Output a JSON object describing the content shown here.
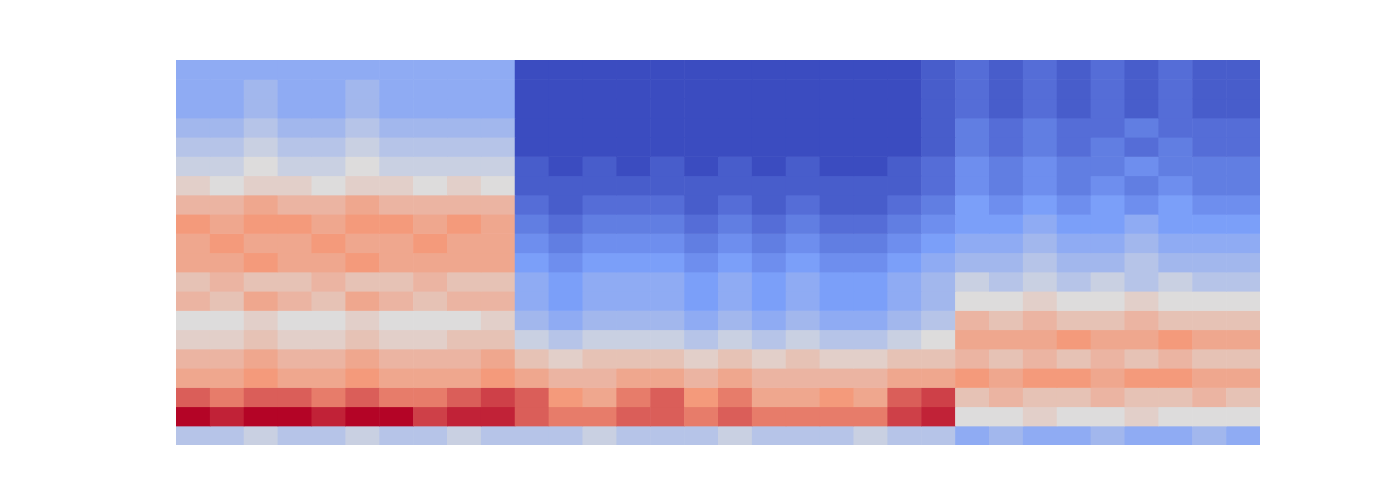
{
  "chart_data": {
    "type": "heatmap",
    "tick_labels": false,
    "x": [
      0.5,
      1.5,
      2.5,
      3.5,
      4.5,
      5.5,
      6.5,
      7.5,
      8.5,
      9.5,
      10.5,
      11.5,
      12.5,
      13.5,
      14.5,
      15.5,
      16.5,
      17.5,
      18.5,
      19.5,
      20.5,
      21.5,
      22.5,
      23.5,
      24.5,
      25.5,
      26.5,
      27.5,
      28.5,
      29.5,
      30.5,
      31.5
    ],
    "y": [
      0.5,
      1.5,
      2.5,
      3.5,
      4.5,
      5.5,
      6.5,
      7.5,
      8.5,
      9.5,
      10.5,
      11.5,
      12.5,
      13.5,
      14.5,
      15.5,
      16.5,
      17.5,
      18.5,
      19.5
    ],
    "xlim": [
      0,
      32
    ],
    "ylim": [
      0,
      20
    ],
    "zlim": [
      0,
      10
    ],
    "values": [
      [
        4,
        4,
        4.5,
        4,
        4,
        4.5,
        4,
        4,
        4.5,
        4,
        4,
        4,
        4.5,
        4,
        4,
        4,
        4.5,
        4,
        4,
        4,
        4.5,
        4,
        4,
        3,
        3.5,
        3,
        3,
        3.5,
        3,
        3,
        3.5,
        3
      ],
      [
        10,
        9.5,
        10,
        10,
        9.5,
        10,
        10,
        9,
        9.5,
        9.5,
        8.5,
        8,
        8,
        8.5,
        8.5,
        8,
        8.5,
        8,
        8,
        8,
        8,
        9,
        9.5,
        5,
        5,
        5.5,
        5,
        5,
        5.5,
        5,
        5,
        5
      ],
      [
        8.5,
        8,
        8.5,
        8.5,
        8,
        8.5,
        8,
        8,
        8.5,
        9,
        8.5,
        7.5,
        7,
        8,
        8.5,
        7.5,
        8,
        7,
        7,
        7.5,
        7,
        8.5,
        9,
        6,
        6.5,
        6,
        6,
        6.5,
        6,
        6,
        6.5,
        6
      ],
      [
        7,
        7,
        7.5,
        7,
        7,
        7.5,
        7,
        7,
        7,
        7.5,
        7,
        6.5,
        6.5,
        7,
        7,
        6.5,
        7,
        6.5,
        6.5,
        6.5,
        6.5,
        7,
        7,
        7.5,
        7,
        7.5,
        7.5,
        7,
        7.5,
        7.5,
        7,
        7
      ],
      [
        6.5,
        6.5,
        7,
        6.5,
        6.5,
        7,
        6.5,
        6.5,
        6.5,
        7,
        6,
        5.5,
        6,
        6,
        6,
        5.5,
        6,
        5.5,
        6,
        5.5,
        5.5,
        6,
        6,
        6.5,
        6,
        6.5,
        6,
        6.5,
        6,
        6.5,
        6,
        6
      ],
      [
        5.5,
        5.5,
        6,
        5.5,
        5.5,
        6,
        5.5,
        5.5,
        6,
        6,
        4.5,
        4,
        4.5,
        4.5,
        4.5,
        4,
        4.5,
        4,
        4.5,
        4,
        4,
        4.5,
        5,
        7,
        7,
        7,
        7.5,
        7,
        7,
        7.5,
        7,
        7
      ],
      [
        5,
        5,
        5.5,
        5,
        5,
        5.5,
        5,
        5,
        5,
        5.5,
        3.5,
        3,
        3.5,
        3.5,
        3.5,
        3,
        3.5,
        3,
        3.5,
        3,
        3,
        3.5,
        4,
        6.5,
        6,
        6.5,
        6,
        6,
        6.5,
        6,
        6,
        6
      ],
      [
        6.5,
        6,
        7,
        6.5,
        6,
        7,
        6.5,
        6,
        6.5,
        6.5,
        3,
        2.5,
        3,
        3,
        3,
        2.5,
        3,
        2.5,
        3,
        2.5,
        2.5,
        3,
        3.5,
        5,
        5,
        5.5,
        5,
        5,
        5.5,
        5,
        5,
        5
      ],
      [
        6,
        6.5,
        6,
        6,
        6.5,
        6,
        6,
        6.5,
        6,
        6,
        3,
        2.5,
        3,
        3,
        3,
        2.5,
        3,
        2.5,
        3,
        2.5,
        2.5,
        3,
        3.5,
        4.5,
        4,
        4.5,
        4,
        4.5,
        4,
        4.5,
        4,
        4
      ],
      [
        7,
        7,
        7.5,
        7,
        7,
        7.5,
        7,
        7,
        7,
        7,
        2.5,
        2,
        2.5,
        2.5,
        2.5,
        2,
        2.5,
        2,
        2.5,
        2,
        2,
        2.5,
        3,
        3.5,
        3.5,
        4,
        3.5,
        3.5,
        4,
        3.5,
        3.5,
        3.5
      ],
      [
        7,
        7.5,
        7,
        7,
        7.5,
        7,
        7,
        7.5,
        7,
        7,
        2,
        1.5,
        2,
        2,
        2,
        1.5,
        2,
        1.5,
        2,
        1.5,
        1.5,
        2,
        2.5,
        3,
        3,
        3.5,
        3,
        3,
        3.5,
        3,
        3,
        3
      ],
      [
        7.5,
        7,
        7.5,
        7.5,
        7,
        7.5,
        7.5,
        7,
        7.5,
        7,
        1.5,
        1,
        1.5,
        1.5,
        1.5,
        1,
        1.5,
        1,
        1.5,
        1,
        1,
        1.5,
        2,
        2.5,
        2.5,
        3,
        2.5,
        2.5,
        3,
        2.5,
        2.5,
        2.5
      ],
      [
        6.5,
        6.5,
        7,
        6.5,
        6.5,
        7,
        6.5,
        6.5,
        6.5,
        6.5,
        1,
        0.5,
        1,
        1,
        1,
        0.5,
        1,
        0.5,
        1,
        0.5,
        0.5,
        1,
        1.5,
        2.5,
        2,
        2.5,
        2,
        2.5,
        2,
        2.5,
        2,
        2
      ],
      [
        5.5,
        5,
        5.5,
        5.5,
        5,
        5.5,
        5.5,
        5,
        5.5,
        5,
        0.5,
        0.5,
        0.5,
        0.5,
        0.5,
        0.5,
        0.5,
        0.5,
        0.5,
        0.5,
        0.5,
        0.5,
        1,
        2,
        1.5,
        2,
        1.5,
        2,
        1.5,
        2,
        1.5,
        1.5
      ],
      [
        4.5,
        4.5,
        5,
        4.5,
        4.5,
        5,
        4.5,
        4.5,
        4.5,
        4.5,
        0.5,
        0,
        0.5,
        0,
        0.5,
        0,
        0.5,
        0,
        0.5,
        0,
        0,
        0.5,
        1,
        2,
        1.5,
        2,
        1.5,
        1.5,
        2,
        1.5,
        1.5,
        1.5
      ],
      [
        4,
        4,
        4.5,
        4,
        4,
        4.5,
        4,
        4,
        4,
        4,
        0,
        0,
        0,
        0,
        0,
        0,
        0,
        0,
        0,
        0,
        0,
        0,
        0.5,
        1.5,
        1,
        1.5,
        1,
        1.5,
        1,
        1.5,
        1,
        1
      ],
      [
        3.5,
        3.5,
        4,
        3.5,
        3.5,
        4,
        3.5,
        3.5,
        3.5,
        3.5,
        0,
        0,
        0,
        0,
        0,
        0,
        0,
        0,
        0,
        0,
        0,
        0,
        0.5,
        1.5,
        1,
        1.5,
        1,
        1,
        1.5,
        1,
        1,
        1
      ],
      [
        3,
        3,
        3.5,
        3,
        3,
        3.5,
        3,
        3,
        3,
        3,
        0,
        0,
        0,
        0,
        0,
        0,
        0,
        0,
        0,
        0,
        0,
        0,
        0.5,
        1,
        0.5,
        1,
        0.5,
        1,
        0.5,
        1,
        0.5,
        0.5
      ],
      [
        3,
        3,
        3.5,
        3,
        3,
        3.5,
        3,
        3,
        3,
        3,
        0,
        0,
        0,
        0,
        0,
        0,
        0,
        0,
        0,
        0,
        0,
        0,
        0.5,
        1,
        0.5,
        1,
        0.5,
        1,
        0.5,
        1,
        0.5,
        0.5
      ],
      [
        3,
        3,
        3,
        3,
        3,
        3,
        3,
        3,
        3,
        3,
        0,
        0,
        0,
        0,
        0,
        0,
        0,
        0,
        0,
        0,
        0,
        0,
        0.5,
        1,
        0.5,
        1,
        0.5,
        1,
        0.5,
        1,
        0.5,
        0.5
      ]
    ]
  }
}
